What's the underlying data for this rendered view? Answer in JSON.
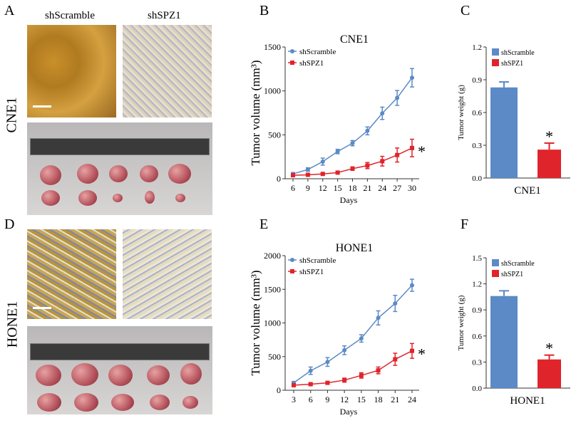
{
  "panels": {
    "A": "A",
    "B": "B",
    "C": "C",
    "D": "D",
    "E": "E",
    "F": "F"
  },
  "images": {
    "col1": "shScramble",
    "col2": "shSPZ1",
    "row1": "CNE1",
    "row2": "HONE1"
  },
  "colors": {
    "shScramble": "#5b8ac6",
    "shSPZ1": "#e0242b"
  },
  "chart_data": [
    {
      "type": "line",
      "title": "CNE1",
      "xlabel": "Days",
      "ylabel": "Tumor volume (mm³)",
      "ylim": [
        0,
        1500
      ],
      "yticks": [
        0,
        500,
        1000,
        1500
      ],
      "x": [
        6,
        9,
        12,
        15,
        18,
        21,
        24,
        27,
        30
      ],
      "legend": "top-left",
      "annotation": "*",
      "series": [
        {
          "name": "shScramble",
          "values": [
            55,
            105,
            195,
            310,
            405,
            545,
            745,
            920,
            1150
          ],
          "error": [
            15,
            20,
            40,
            25,
            30,
            45,
            70,
            85,
            105
          ]
        },
        {
          "name": "shSPZ1",
          "values": [
            40,
            45,
            55,
            70,
            115,
            150,
            200,
            270,
            350
          ],
          "error": [
            10,
            10,
            10,
            10,
            20,
            35,
            55,
            80,
            100
          ]
        }
      ]
    },
    {
      "type": "bar",
      "xlabel": "CNE1",
      "ylabel": "Tumor weight (g)",
      "ylim": [
        0,
        1.2
      ],
      "yticks": [
        "0.0",
        "0.3",
        "0.6",
        "0.9",
        "1.2"
      ],
      "legend": "top-right",
      "annotation": "*",
      "categories": [
        "shScramble",
        "shSPZ1"
      ],
      "values": [
        0.83,
        0.26
      ],
      "error": [
        0.05,
        0.06
      ]
    },
    {
      "type": "line",
      "title": "HONE1",
      "xlabel": "Days",
      "ylabel": "Tumor volume (mm³)",
      "ylim": [
        0,
        2000
      ],
      "yticks": [
        0,
        500,
        1000,
        1500,
        2000
      ],
      "x": [
        3,
        6,
        9,
        12,
        15,
        18,
        21,
        24
      ],
      "legend": "top-left",
      "annotation": "*",
      "series": [
        {
          "name": "shScramble",
          "values": [
            110,
            290,
            420,
            595,
            770,
            1075,
            1290,
            1560
          ],
          "error": [
            20,
            55,
            65,
            65,
            55,
            105,
            120,
            90
          ]
        },
        {
          "name": "shSPZ1",
          "values": [
            75,
            90,
            110,
            150,
            220,
            295,
            460,
            585
          ],
          "error": [
            20,
            15,
            15,
            30,
            40,
            50,
            90,
            110
          ]
        }
      ]
    },
    {
      "type": "bar",
      "xlabel": "HONE1",
      "ylabel": "Tumor weight (g)",
      "ylim": [
        0,
        1.5
      ],
      "yticks": [
        "0.0",
        "0.3",
        "0.6",
        "0.9",
        "1.2",
        "1.5"
      ],
      "legend": "top-right",
      "annotation": "*",
      "categories": [
        "shScramble",
        "shSPZ1"
      ],
      "values": [
        1.06,
        0.33
      ],
      "error": [
        0.06,
        0.05
      ]
    }
  ]
}
